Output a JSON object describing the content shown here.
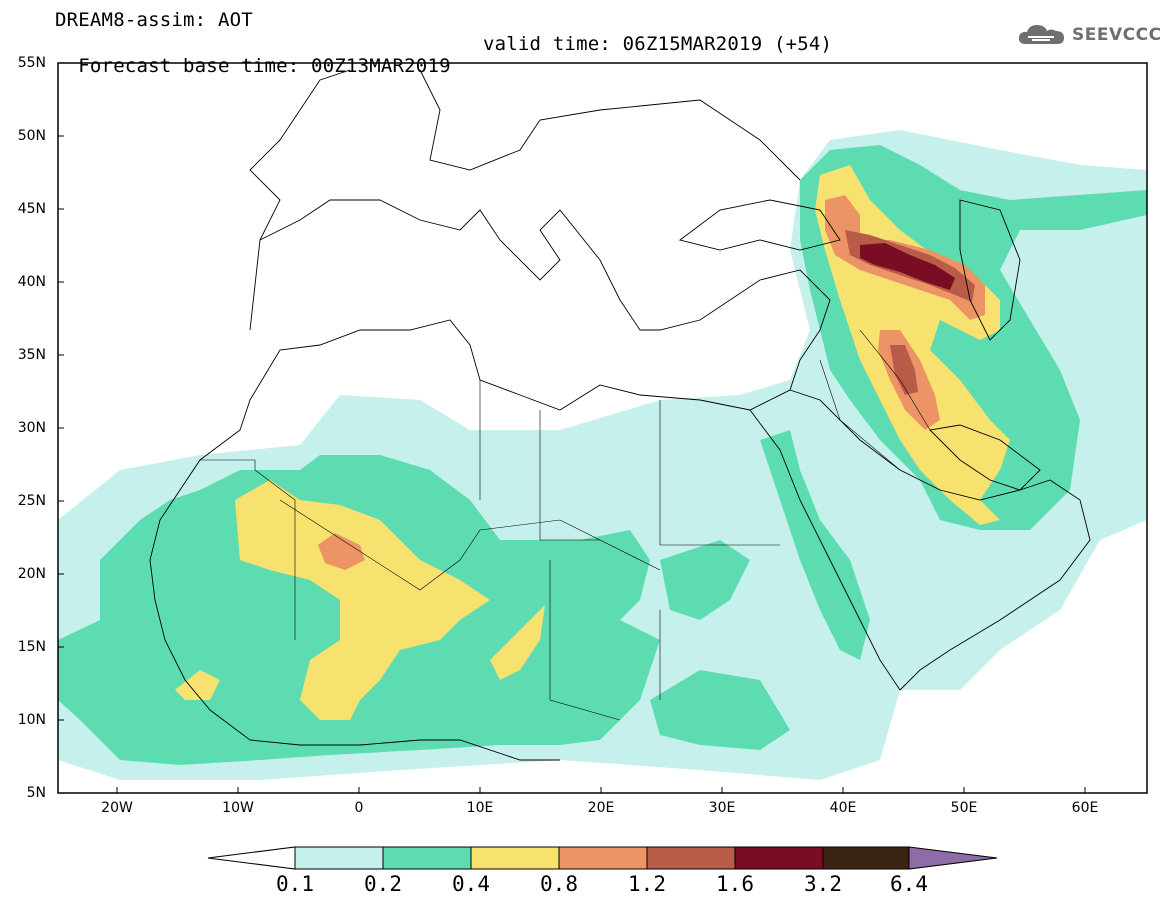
{
  "header": {
    "title": "DREAM8-assim: AOT",
    "base_time": "Forecast base time: 00Z13MAR2019",
    "valid_time": "valid time: 06Z15MAR2019 (+54)"
  },
  "logo": {
    "text": "SEEVCCC",
    "icon": "cloud-icon"
  },
  "map": {
    "lat_labels": [
      "55N",
      "50N",
      "45N",
      "40N",
      "35N",
      "30N",
      "25N",
      "20N",
      "15N",
      "10N",
      "5N"
    ],
    "lon_labels": [
      "20W",
      "10W",
      "0",
      "10E",
      "20E",
      "30E",
      "40E",
      "50E",
      "60E"
    ]
  },
  "colorbar": {
    "levels": [
      "0.1",
      "0.2",
      "0.4",
      "0.8",
      "1.2",
      "1.6",
      "3.2",
      "6.4"
    ],
    "colors": [
      "#c6f0ec",
      "#5ddcb2",
      "#f7e270",
      "#ec9466",
      "#b85b49",
      "#7a0d24",
      "#3b2314",
      "#8e6ca8"
    ],
    "under_color": "#ffffff"
  }
}
